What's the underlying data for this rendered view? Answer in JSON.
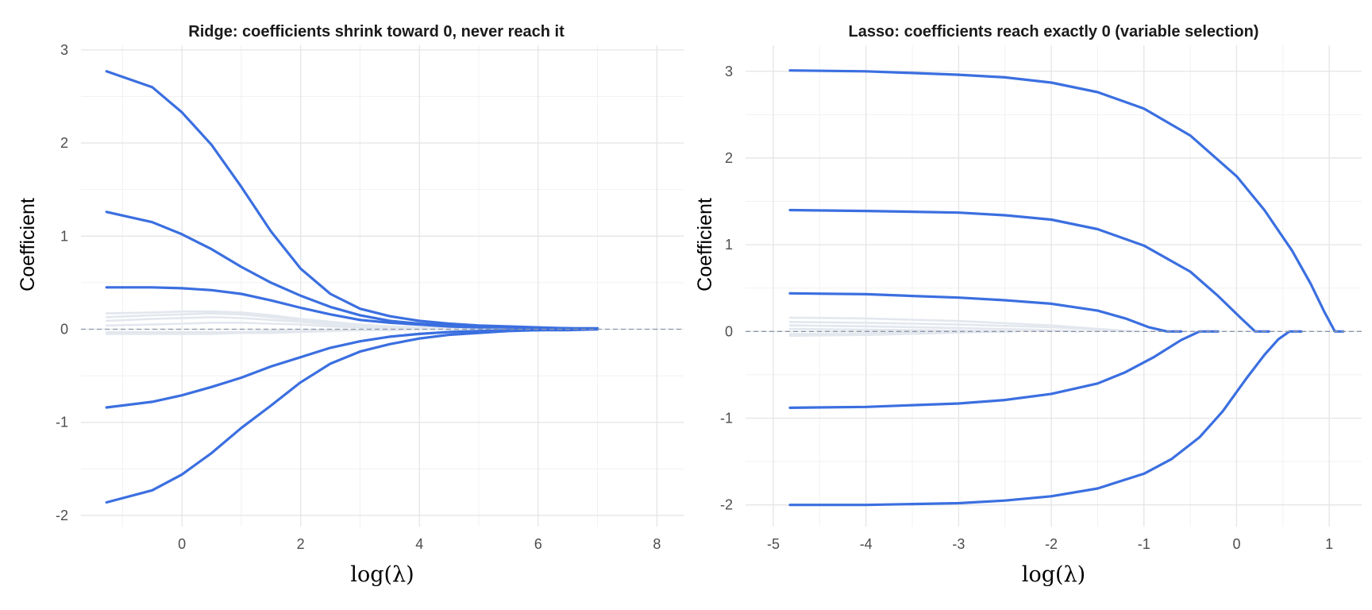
{
  "colors": {
    "highlight": "#3b6fe0",
    "background_paths": "#e3e7ee",
    "grid_major": "#e5e5e5",
    "grid_minor": "#f1f1f1",
    "zero_line": "#8c97aa"
  },
  "chart_data": [
    {
      "type": "line",
      "title": "Ridge: coefficients shrink toward 0, never reach it",
      "xlabel": "log(λ)",
      "ylabel": "Coefficient",
      "xlim": [
        -1.7,
        8.45
      ],
      "ylim": [
        -2.12,
        3.05
      ],
      "xticks": [
        0,
        2,
        4,
        6,
        8
      ],
      "xtick_labels": [
        "0",
        "2",
        "4",
        "6",
        "8"
      ],
      "yticks": [
        -2,
        -1,
        0,
        1,
        2,
        3
      ],
      "ytick_labels": [
        "-2",
        "-1",
        "0",
        "1",
        "2",
        "3"
      ],
      "grid": true,
      "reference_line_y": 0,
      "series": [
        {
          "highlight": true,
          "x": [
            -1.27,
            -0.5,
            0,
            0.5,
            1,
            1.5,
            2,
            2.5,
            3,
            3.5,
            4,
            4.5,
            5,
            5.5,
            6,
            6.5,
            7
          ],
          "y": [
            2.77,
            2.6,
            2.33,
            1.98,
            1.53,
            1.05,
            0.65,
            0.38,
            0.22,
            0.14,
            0.09,
            0.06,
            0.04,
            0.03,
            0.02,
            0.01,
            0.01
          ]
        },
        {
          "highlight": true,
          "x": [
            -1.27,
            -0.5,
            0,
            0.5,
            1,
            1.5,
            2,
            2.5,
            3,
            3.5,
            4,
            4.5,
            5,
            5.5,
            6,
            6.5,
            7
          ],
          "y": [
            1.26,
            1.15,
            1.02,
            0.86,
            0.67,
            0.5,
            0.36,
            0.24,
            0.15,
            0.09,
            0.06,
            0.04,
            0.03,
            0.02,
            0.01,
            0.01,
            0.0
          ]
        },
        {
          "highlight": true,
          "x": [
            -1.27,
            -0.5,
            0,
            0.5,
            1,
            1.5,
            2,
            2.5,
            3,
            3.5,
            4,
            4.5,
            5,
            5.5,
            6,
            6.5,
            7
          ],
          "y": [
            0.45,
            0.45,
            0.44,
            0.42,
            0.38,
            0.31,
            0.23,
            0.16,
            0.1,
            0.07,
            0.05,
            0.03,
            0.02,
            0.02,
            0.01,
            0.01,
            0.0
          ]
        },
        {
          "highlight": true,
          "x": [
            -1.27,
            -0.5,
            0,
            0.5,
            1,
            1.5,
            2,
            2.5,
            3,
            3.5,
            4,
            4.5,
            5,
            5.5,
            6,
            6.5,
            7
          ],
          "y": [
            -0.84,
            -0.78,
            -0.71,
            -0.62,
            -0.52,
            -0.4,
            -0.3,
            -0.2,
            -0.13,
            -0.08,
            -0.05,
            -0.03,
            -0.02,
            -0.01,
            -0.01,
            0.0,
            0.0
          ]
        },
        {
          "highlight": true,
          "x": [
            -1.27,
            -0.5,
            0,
            0.5,
            1,
            1.5,
            2,
            2.5,
            3,
            3.5,
            4,
            4.5,
            5,
            5.5,
            6,
            6.5,
            7
          ],
          "y": [
            -1.86,
            -1.73,
            -1.56,
            -1.33,
            -1.06,
            -0.82,
            -0.57,
            -0.37,
            -0.24,
            -0.16,
            -0.1,
            -0.06,
            -0.04,
            -0.02,
            -0.01,
            -0.01,
            0.0
          ]
        },
        {
          "highlight": false,
          "x": [
            -1.27,
            -0.5,
            0,
            0.5,
            1,
            1.5,
            2,
            2.5,
            3,
            3.5,
            4,
            4.5,
            5,
            5.5,
            6,
            6.5,
            7
          ],
          "y": [
            0.17,
            0.18,
            0.19,
            0.19,
            0.18,
            0.15,
            0.11,
            0.08,
            0.05,
            0.03,
            0.02,
            0.01,
            0.01,
            0.0,
            0.0,
            0.0,
            0.0
          ]
        },
        {
          "highlight": false,
          "x": [
            -1.27,
            -0.5,
            0,
            0.5,
            1,
            1.5,
            2,
            2.5,
            3,
            3.5,
            4,
            4.5,
            5,
            5.5,
            6,
            6.5,
            7
          ],
          "y": [
            0.13,
            0.15,
            0.16,
            0.17,
            0.16,
            0.13,
            0.1,
            0.07,
            0.04,
            0.03,
            0.02,
            0.01,
            0.01,
            0.0,
            0.0,
            0.0,
            0.0
          ]
        },
        {
          "highlight": false,
          "x": [
            -1.27,
            -0.5,
            0,
            0.5,
            1,
            1.5,
            2,
            2.5,
            3,
            3.5,
            4,
            4.5,
            5,
            5.5,
            6,
            6.5,
            7
          ],
          "y": [
            0.09,
            0.11,
            0.12,
            0.13,
            0.12,
            0.1,
            0.08,
            0.05,
            0.03,
            0.02,
            0.01,
            0.01,
            0.0,
            0.0,
            0.0,
            0.0,
            0.0
          ]
        },
        {
          "highlight": false,
          "x": [
            -1.27,
            -0.5,
            0,
            0.5,
            1,
            1.5,
            2,
            2.5,
            3,
            3.5,
            4,
            4.5,
            5,
            5.5,
            6,
            6.5,
            7
          ],
          "y": [
            0.04,
            0.05,
            0.06,
            0.07,
            0.07,
            0.06,
            0.05,
            0.03,
            0.02,
            0.01,
            0.01,
            0.0,
            0.0,
            0.0,
            0.0,
            0.0,
            0.0
          ]
        },
        {
          "highlight": false,
          "x": [
            -1.27,
            -0.5,
            0,
            0.5,
            1,
            1.5,
            2,
            2.5,
            3,
            3.5,
            4,
            4.5,
            5,
            5.5,
            6,
            6.5,
            7
          ],
          "y": [
            -0.03,
            -0.03,
            -0.03,
            -0.03,
            -0.03,
            -0.02,
            -0.02,
            -0.01,
            -0.01,
            0.0,
            0.0,
            0.0,
            0.0,
            0.0,
            0.0,
            0.0,
            0.0
          ]
        },
        {
          "highlight": false,
          "x": [
            -1.27,
            -0.5,
            0,
            0.5,
            1,
            1.5,
            2,
            2.5,
            3,
            3.5,
            4,
            4.5,
            5,
            5.5,
            6,
            6.5,
            7
          ],
          "y": [
            -0.05,
            -0.05,
            -0.05,
            -0.05,
            -0.04,
            -0.04,
            -0.03,
            -0.02,
            -0.01,
            -0.01,
            0.0,
            0.0,
            0.0,
            0.0,
            0.0,
            0.0,
            0.0
          ]
        }
      ]
    },
    {
      "type": "line",
      "title": "Lasso: coefficients reach exactly 0 (variable selection)",
      "xlabel": "log(λ)",
      "ylabel": "Coefficient",
      "xlim": [
        -5.3,
        1.35
      ],
      "ylim": [
        -2.25,
        3.3
      ],
      "xticks": [
        -5,
        -4,
        -3,
        -2,
        -1,
        0,
        1
      ],
      "xtick_labels": [
        "-5",
        "-4",
        "-3",
        "-2",
        "-1",
        "0",
        "1"
      ],
      "yticks": [
        -2,
        -1,
        0,
        1,
        2,
        3
      ],
      "ytick_labels": [
        "-2",
        "-1",
        "0",
        "1",
        "2",
        "3"
      ],
      "grid": true,
      "reference_line_y": 0,
      "series": [
        {
          "highlight": true,
          "x": [
            -4.82,
            -4,
            -3.5,
            -3,
            -2.5,
            -2,
            -1.5,
            -1,
            -0.5,
            0,
            0.3,
            0.6,
            0.8,
            0.95,
            1.06,
            1.15
          ],
          "y": [
            3.01,
            3.0,
            2.98,
            2.96,
            2.93,
            2.87,
            2.76,
            2.57,
            2.26,
            1.79,
            1.4,
            0.93,
            0.55,
            0.22,
            0.0,
            0.0
          ]
        },
        {
          "highlight": true,
          "x": [
            -4.82,
            -4,
            -3.5,
            -3,
            -2.5,
            -2,
            -1.5,
            -1,
            -0.5,
            -0.2,
            0.05,
            0.2,
            0.35
          ],
          "y": [
            1.4,
            1.39,
            1.38,
            1.37,
            1.34,
            1.29,
            1.18,
            0.99,
            0.69,
            0.41,
            0.15,
            0.0,
            0.0
          ]
        },
        {
          "highlight": true,
          "x": [
            -4.82,
            -4,
            -3.5,
            -3,
            -2.5,
            -2,
            -1.5,
            -1.2,
            -0.95,
            -0.75,
            -0.6
          ],
          "y": [
            0.44,
            0.43,
            0.41,
            0.39,
            0.36,
            0.32,
            0.24,
            0.15,
            0.05,
            0.0,
            0.0
          ]
        },
        {
          "highlight": true,
          "x": [
            -4.82,
            -4,
            -3.5,
            -3,
            -2.5,
            -2,
            -1.5,
            -1.2,
            -0.9,
            -0.6,
            -0.4,
            -0.2
          ],
          "y": [
            -0.88,
            -0.87,
            -0.85,
            -0.83,
            -0.79,
            -0.72,
            -0.6,
            -0.47,
            -0.3,
            -0.1,
            0.0,
            0.0
          ]
        },
        {
          "highlight": true,
          "x": [
            -4.82,
            -4,
            -3.5,
            -3,
            -2.5,
            -2,
            -1.5,
            -1,
            -0.7,
            -0.4,
            -0.15,
            0.1,
            0.3,
            0.45,
            0.57,
            0.7
          ],
          "y": [
            -2.0,
            -2.0,
            -1.99,
            -1.98,
            -1.95,
            -1.9,
            -1.81,
            -1.64,
            -1.47,
            -1.22,
            -0.92,
            -0.55,
            -0.27,
            -0.09,
            0.0,
            0.0
          ]
        },
        {
          "highlight": false,
          "x": [
            -4.82,
            -4,
            -3,
            -2,
            -1.5,
            -1.1
          ],
          "y": [
            0.16,
            0.15,
            0.12,
            0.07,
            0.03,
            0.0
          ]
        },
        {
          "highlight": false,
          "x": [
            -4.82,
            -4,
            -3,
            -2,
            -1.5,
            -1.2
          ],
          "y": [
            0.11,
            0.1,
            0.08,
            0.05,
            0.02,
            0.0
          ]
        },
        {
          "highlight": false,
          "x": [
            -4.82,
            -4,
            -3,
            -2.2,
            -1.7
          ],
          "y": [
            0.07,
            0.06,
            0.04,
            0.02,
            0.0
          ]
        },
        {
          "highlight": false,
          "x": [
            -4.82,
            -4,
            -3,
            -2.5
          ],
          "y": [
            0.03,
            0.02,
            0.01,
            0.0
          ]
        },
        {
          "highlight": false,
          "x": [
            -4.82,
            -4,
            -3,
            -2.4
          ],
          "y": [
            -0.03,
            -0.02,
            -0.01,
            0.0
          ]
        },
        {
          "highlight": false,
          "x": [
            -4.82,
            -4,
            -3.2,
            -2.6
          ],
          "y": [
            -0.05,
            -0.04,
            -0.02,
            0.0
          ]
        }
      ]
    }
  ]
}
